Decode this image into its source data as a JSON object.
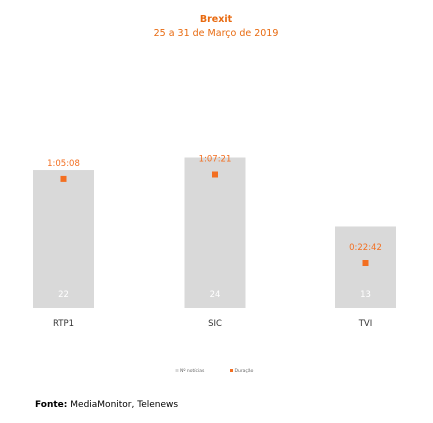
{
  "colors": {
    "title": "#e86a10",
    "bar": "#d9d9d9",
    "marker": "#f36f21",
    "count_label": "#ffffff",
    "category_label": "#333333",
    "legend_text": "#666666"
  },
  "chart_data": {
    "type": "bar",
    "title": "Brexit",
    "subtitle": "25 a 31 de Março de 2019",
    "categories": [
      "RTP1",
      "SIC",
      "TVI"
    ],
    "series": [
      {
        "name": "Nº notícias",
        "kind": "bar",
        "values": [
          22,
          24,
          13
        ],
        "labels": [
          "22",
          "24",
          "13"
        ]
      },
      {
        "name": "Duração",
        "kind": "marker",
        "values_seconds": [
          3908,
          4041,
          1362
        ],
        "labels": [
          "1:05:08",
          "1:07:21",
          "0:22:42"
        ]
      }
    ],
    "ylim_bars": [
      0,
      29.5
    ],
    "ylim_duration_seconds": [
      0,
      5600
    ],
    "legend_position": "bottom-center",
    "grid": false
  },
  "source": {
    "label": "Fonte:",
    "text": "MediaMonitor, Telenews"
  }
}
